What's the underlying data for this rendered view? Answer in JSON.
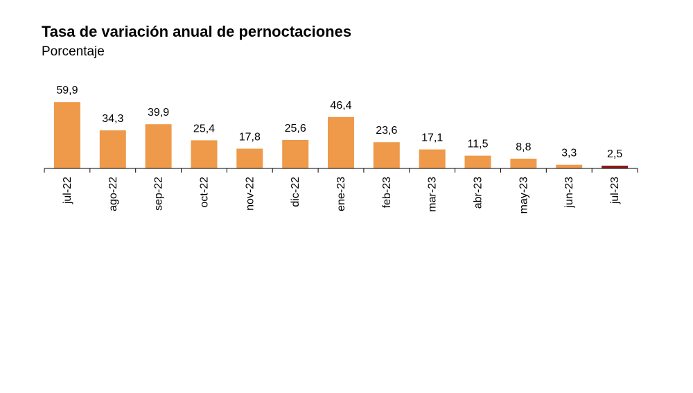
{
  "chart_data": {
    "type": "bar",
    "title": "Tasa de variación anual de pernoctaciones",
    "subtitle": "Porcentaje",
    "categories": [
      "jul-22",
      "ago-22",
      "sep-22",
      "oct-22",
      "nov-22",
      "dic-22",
      "ene-23",
      "feb-23",
      "mar-23",
      "abr-23",
      "may-23",
      "jun-23",
      "jul-23"
    ],
    "values": [
      59.9,
      34.3,
      39.9,
      25.4,
      17.8,
      25.6,
      46.4,
      23.6,
      17.1,
      11.5,
      8.8,
      3.3,
      2.5
    ],
    "value_labels": [
      "59,9",
      "34,3",
      "39,9",
      "25,4",
      "17,8",
      "25,6",
      "46,4",
      "23,6",
      "17,1",
      "11,5",
      "8,8",
      "3,3",
      "2,5"
    ],
    "xlabel": "",
    "ylabel": "",
    "ylim": [
      0,
      60
    ],
    "grid": false,
    "colors": {
      "bar": "#ee9a4a",
      "highlight": "#8b1a1a",
      "axis": "#000000"
    },
    "highlight_index": 12
  }
}
